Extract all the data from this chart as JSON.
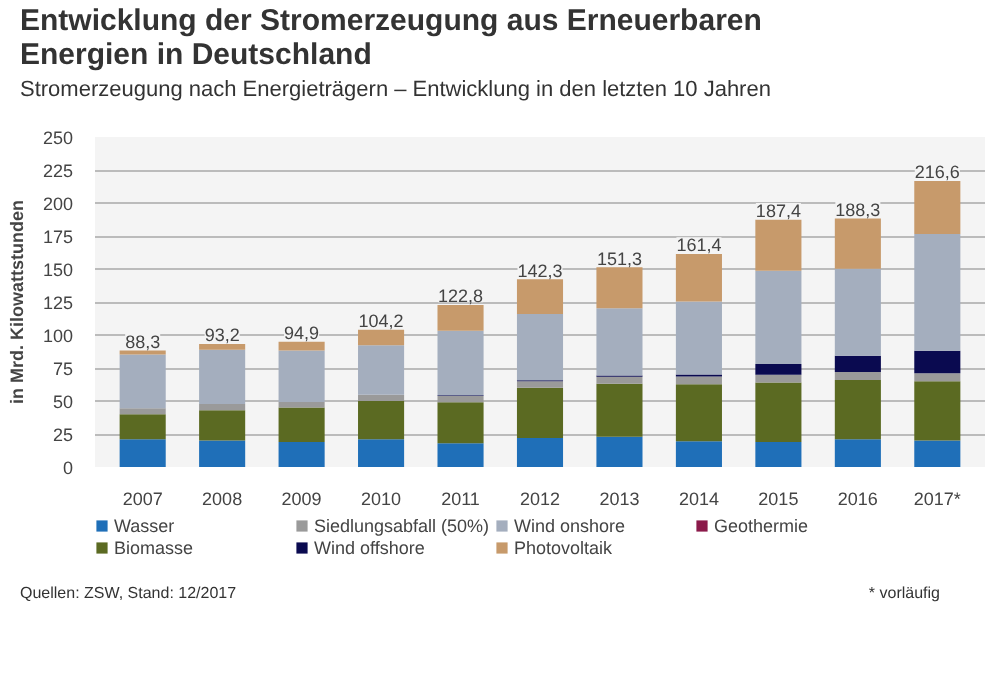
{
  "chart_data": {
    "type": "bar",
    "stacked": true,
    "title": "Entwicklung der Stromerzeugung aus Erneuerbaren Energien in Deutschland",
    "subtitle": "Stromerzeugung nach Energieträgern – Entwicklung in den letzten 10 Jahren",
    "ylabel": "in Mrd. Kilowattstunden",
    "categories": [
      "2007",
      "2008",
      "2009",
      "2010",
      "2011",
      "2012",
      "2013",
      "2014",
      "2015",
      "2016",
      "2017*"
    ],
    "series": [
      {
        "name": "Wasser",
        "color": "#1f6fb8",
        "values": [
          21,
          20,
          19,
          21,
          18,
          22,
          23,
          19.6,
          19,
          21,
          20
        ]
      },
      {
        "name": "Biomasse",
        "color": "#5b6a22",
        "values": [
          19,
          23,
          26,
          29,
          31,
          38,
          40,
          43,
          45,
          45,
          45
        ]
      },
      {
        "name": "Siedlungsabfall (50%)",
        "color": "#9a9a9a",
        "values": [
          4.5,
          4.7,
          4.3,
          4.7,
          4.8,
          5,
          5.4,
          6,
          5.8,
          5.9,
          6
        ]
      },
      {
        "name": "Wind offshore",
        "color": "#0a0a50",
        "values": [
          0,
          0,
          0,
          null,
          0.6,
          0.7,
          0.9,
          1.5,
          8.3,
          12.3,
          17
        ]
      },
      {
        "name": "Wind onshore",
        "color": "#a4aebe",
        "values": [
          40.7,
          41.1,
          39.0,
          37.6,
          48.8,
          50.2,
          51.0,
          55.2,
          70.6,
          66.0,
          88.6
        ]
      },
      {
        "name": "Photovoltaik",
        "color": "#c79a6b",
        "values": [
          3.1,
          4.4,
          6.6,
          11.7,
          19.6,
          26.4,
          31,
          36.1,
          38.7,
          38.1,
          40
        ]
      },
      {
        "name": "Geothermie",
        "color": "#8b1a4a",
        "values": [
          0,
          0,
          0,
          0,
          0,
          0,
          0,
          0,
          0,
          0,
          0
        ]
      }
    ],
    "totals": [
      "88,3",
      "93,2",
      "94,9",
      "104,2",
      "122,8",
      "142,3",
      "151,3",
      "161,4",
      "187,4",
      "188,3",
      "216,6"
    ],
    "ylim": [
      0,
      250
    ],
    "yticks": [
      0,
      25,
      50,
      75,
      100,
      125,
      150,
      175,
      200,
      225,
      250
    ],
    "grid": "y",
    "legend": "bottom",
    "annotations": [
      "Quellen: ZSW, Stand: 12/2017",
      "* vorläufig"
    ]
  }
}
